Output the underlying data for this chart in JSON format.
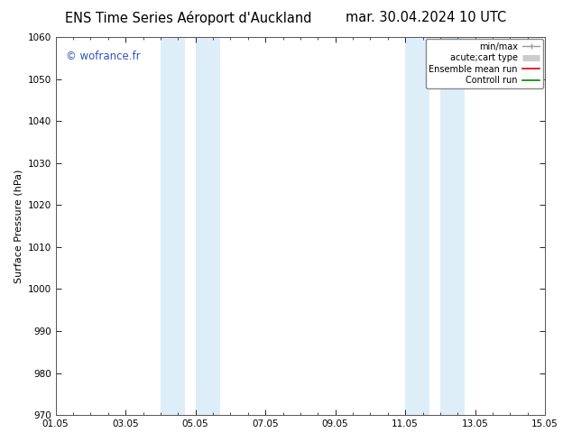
{
  "title_left": "ENS Time Series Aéroport d'Auckland",
  "title_right": "mar. 30.04.2024 10 UTC",
  "ylabel": "Surface Pressure (hPa)",
  "ylim": [
    970,
    1060
  ],
  "yticks": [
    970,
    980,
    990,
    1000,
    1010,
    1020,
    1030,
    1040,
    1050,
    1060
  ],
  "xlim": [
    0,
    14
  ],
  "xtick_positions": [
    0,
    2,
    4,
    6,
    8,
    10,
    12,
    14
  ],
  "xtick_labels": [
    "01.05",
    "03.05",
    "05.05",
    "07.05",
    "09.05",
    "11.05",
    "13.05",
    "15.05"
  ],
  "shaded_bands": [
    {
      "x_start": 3.0,
      "x_end": 3.7
    },
    {
      "x_start": 4.0,
      "x_end": 4.7
    },
    {
      "x_start": 10.0,
      "x_end": 10.7
    },
    {
      "x_start": 11.0,
      "x_end": 11.7
    }
  ],
  "band_color": "#ddeef9",
  "watermark": "© wofrance.fr",
  "watermark_color": "#3355bb",
  "legend_entries": [
    {
      "label": "min/max",
      "color": "#999999",
      "lw": 1.0,
      "style": "caps"
    },
    {
      "label": "acute;cart type",
      "color": "#cccccc",
      "lw": 5,
      "style": "thick"
    },
    {
      "label": "Ensemble mean run",
      "color": "#dd0000",
      "lw": 1.2,
      "style": "line"
    },
    {
      "label": "Controll run",
      "color": "#008800",
      "lw": 1.2,
      "style": "line"
    }
  ],
  "background_color": "#ffffff",
  "plot_bg_color": "#ffffff",
  "title_fontsize": 10.5,
  "axis_fontsize": 8,
  "tick_fontsize": 7.5,
  "watermark_fontsize": 8.5,
  "legend_fontsize": 7
}
